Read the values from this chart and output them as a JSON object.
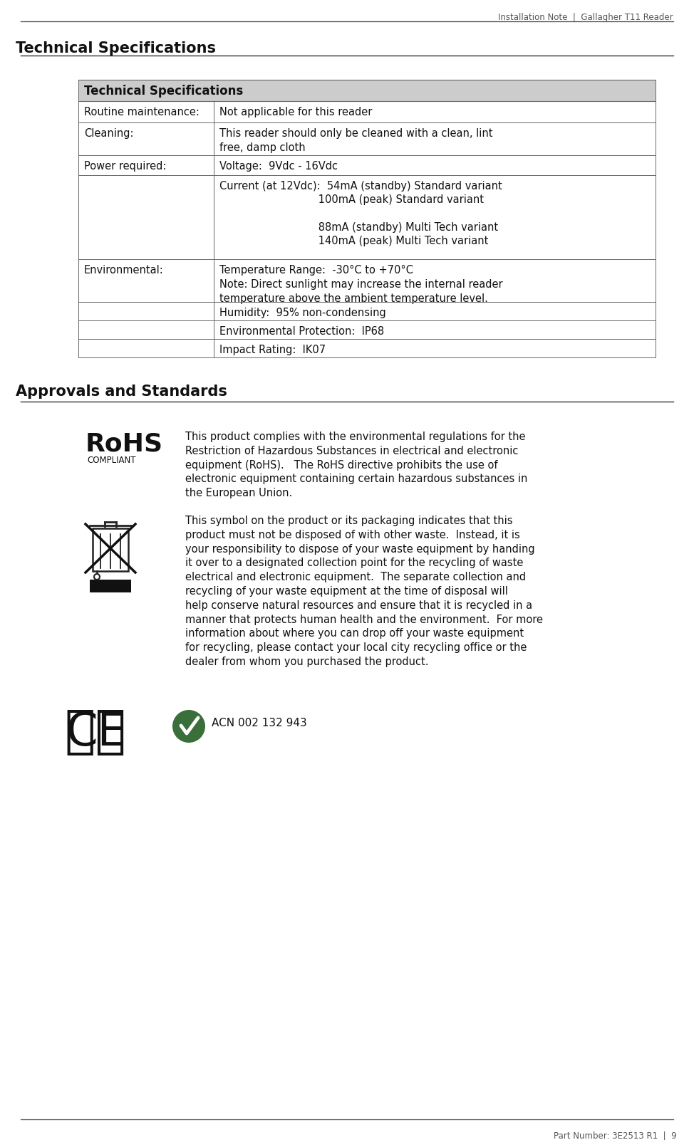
{
  "header_text": "Installation Note  |  Gallagher T11 Reader",
  "footer_text": "Part Number: 3E2513 R1  |  9",
  "page_title": "Technical Specifications",
  "section2_title": "Approvals and Standards",
  "table_header": "Technical Specifications",
  "rohs_text": "This product complies with the environmental regulations for the\nRestriction of Hazardous Substances in electrical and electronic\nequipment (RoHS).   The RoHS directive prohibits the use of\nelectronic equipment containing certain hazardous substances in\nthe European Union.",
  "weee_text": "This symbol on the product or its packaging indicates that this\nproduct must not be disposed of with other waste.  Instead, it is\nyour responsibility to dispose of your waste equipment by handing\nit over to a designated collection point for the recycling of waste\nelectrical and electronic equipment.  The separate collection and\nrecycling of your waste equipment at the time of disposal will\nhelp conserve natural resources and ensure that it is recycled in a\nmanner that protects human health and the environment.  For more\ninformation about where you can drop off your waste equipment\nfor recycling, please contact your local city recycling office or the\ndealer from whom you purchased the product.",
  "acn_text": "ACN 002 132 943",
  "bg_color": "#ffffff",
  "table_header_bg": "#cccccc",
  "table_border_color": "#666666",
  "text_color": "#1a1a1a",
  "header_line_color": "#333333"
}
